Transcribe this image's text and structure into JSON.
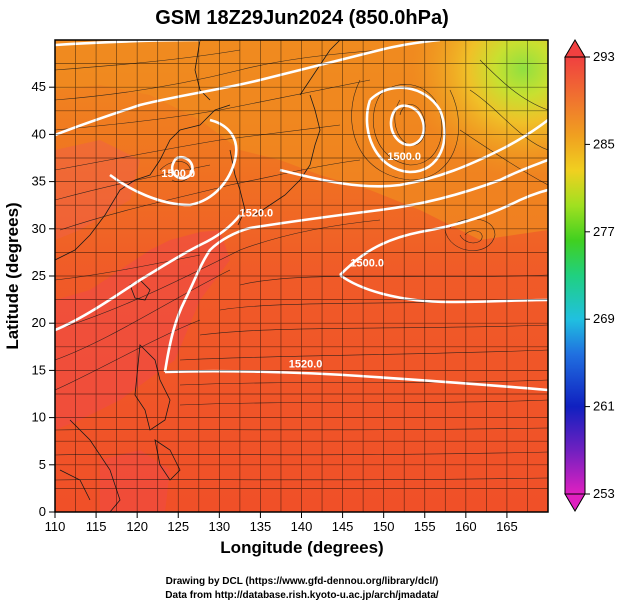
{
  "map": {
    "title": "GSM 18Z29Jun2024 (850.0hPa)",
    "xlabel": "Longitude (degrees)",
    "ylabel": "Latitude (degrees)",
    "lon_range": [
      110,
      170
    ],
    "lat_range": [
      0,
      50
    ],
    "lon_ticks": [
      "110",
      "115",
      "120",
      "125",
      "130",
      "135",
      "140",
      "145",
      "150",
      "155",
      "160",
      "165"
    ],
    "lat_ticks": [
      "0",
      "5",
      "10",
      "15",
      "20",
      "25",
      "30",
      "35",
      "40",
      "45"
    ],
    "contour_labels": [
      {
        "text": "1520.0",
        "lon": 140.5,
        "lat": 15.3
      },
      {
        "text": "1520.0",
        "lon": 134.5,
        "lat": 31.3
      },
      {
        "text": "1500.0",
        "lon": 148.0,
        "lat": 26.0
      },
      {
        "text": "1500.0",
        "lon": 125.0,
        "lat": 35.5
      },
      {
        "text": "1500.0",
        "lon": 152.5,
        "lat": 37.3
      }
    ]
  },
  "colorbar": {
    "labels": [
      "293",
      "285",
      "277",
      "269",
      "261",
      "253"
    ],
    "min": 253,
    "max": 293,
    "colors": [
      "#e020c0",
      "#6020c0",
      "#1020c0",
      "#2070e0",
      "#20c0e0",
      "#20d080",
      "#40d020",
      "#a0e020",
      "#f0d020",
      "#f0a020",
      "#f07030",
      "#f04040"
    ]
  },
  "credits": {
    "line1": "Drawing by DCL (https://www.gfd-dennou.org/library/dcl/)",
    "line2": "Data from http://database.rish.kyoto-u.ac.jp/arch/jmadata/"
  }
}
